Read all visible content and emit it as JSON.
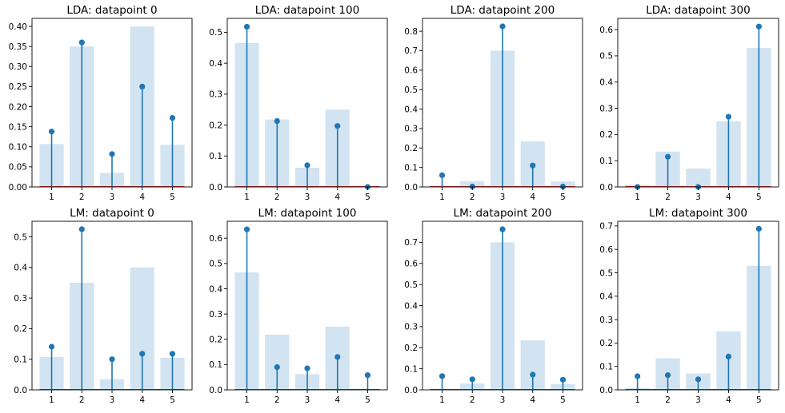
{
  "chart_data": [
    {
      "type": "bar+stem",
      "title": "LDA: datapoint 0",
      "categories": [
        "1",
        "2",
        "3",
        "4",
        "5"
      ],
      "bar_values": [
        0.107,
        0.35,
        0.035,
        0.4,
        0.105
      ],
      "stem_values": [
        0.138,
        0.36,
        0.082,
        0.25,
        0.172
      ],
      "ylim": [
        0,
        0.42
      ],
      "yticks": [
        0,
        0.05,
        0.1,
        0.15,
        0.2,
        0.25,
        0.3,
        0.35,
        0.4
      ],
      "ytick_labels": [
        "0.00",
        "0.05",
        "0.10",
        "0.15",
        "0.20",
        "0.25",
        "0.30",
        "0.35",
        "0.40"
      ]
    },
    {
      "type": "bar+stem",
      "title": "LDA: datapoint 100",
      "categories": [
        "1",
        "2",
        "3",
        "4",
        "5"
      ],
      "bar_values": [
        0.465,
        0.218,
        0.062,
        0.25,
        0.0
      ],
      "stem_values": [
        0.518,
        0.213,
        0.07,
        0.197,
        0.0
      ],
      "ylim": [
        0,
        0.545
      ],
      "yticks": [
        0,
        0.1,
        0.2,
        0.3,
        0.4,
        0.5
      ],
      "ytick_labels": [
        "0.0",
        "0.1",
        "0.2",
        "0.3",
        "0.4",
        "0.5"
      ]
    },
    {
      "type": "bar+stem",
      "title": "LDA: datapoint 200",
      "categories": [
        "1",
        "2",
        "3",
        "4",
        "5"
      ],
      "bar_values": [
        0.0,
        0.03,
        0.7,
        0.235,
        0.028
      ],
      "stem_values": [
        0.06,
        0.002,
        0.825,
        0.11,
        0.002
      ],
      "ylim": [
        0,
        0.866
      ],
      "yticks": [
        0,
        0.1,
        0.2,
        0.3,
        0.4,
        0.5,
        0.6,
        0.7,
        0.8
      ],
      "ytick_labels": [
        "0.0",
        "0.1",
        "0.2",
        "0.3",
        "0.4",
        "0.5",
        "0.6",
        "0.7",
        "0.8"
      ]
    },
    {
      "type": "bar+stem",
      "title": "LDA: datapoint 300",
      "categories": [
        "1",
        "2",
        "3",
        "4",
        "5"
      ],
      "bar_values": [
        0.008,
        0.135,
        0.07,
        0.25,
        0.53
      ],
      "stem_values": [
        0.0,
        0.115,
        0.0,
        0.268,
        0.612
      ],
      "ylim": [
        0,
        0.643
      ],
      "yticks": [
        0,
        0.1,
        0.2,
        0.3,
        0.4,
        0.5,
        0.6
      ],
      "ytick_labels": [
        "0.0",
        "0.1",
        "0.2",
        "0.3",
        "0.4",
        "0.5",
        "0.6"
      ]
    },
    {
      "type": "bar+stem",
      "title": "LM: datapoint 0",
      "categories": [
        "1",
        "2",
        "3",
        "4",
        "5"
      ],
      "bar_values": [
        0.107,
        0.35,
        0.035,
        0.4,
        0.105
      ],
      "stem_values": [
        0.141,
        0.525,
        0.1,
        0.118,
        0.118
      ],
      "ylim": [
        0,
        0.551
      ],
      "yticks": [
        0,
        0.1,
        0.2,
        0.3,
        0.4,
        0.5
      ],
      "ytick_labels": [
        "0.0",
        "0.1",
        "0.2",
        "0.3",
        "0.4",
        "0.5"
      ]
    },
    {
      "type": "bar+stem",
      "title": "LM: datapoint 100",
      "categories": [
        "1",
        "2",
        "3",
        "4",
        "5"
      ],
      "bar_values": [
        0.465,
        0.218,
        0.062,
        0.25,
        0.0
      ],
      "stem_values": [
        0.635,
        0.09,
        0.085,
        0.13,
        0.058
      ],
      "ylim": [
        0,
        0.667
      ],
      "yticks": [
        0,
        0.1,
        0.2,
        0.3,
        0.4,
        0.5,
        0.6
      ],
      "ytick_labels": [
        "0.0",
        "0.1",
        "0.2",
        "0.3",
        "0.4",
        "0.5",
        "0.6"
      ]
    },
    {
      "type": "bar+stem",
      "title": "LM: datapoint 200",
      "categories": [
        "1",
        "2",
        "3",
        "4",
        "5"
      ],
      "bar_values": [
        0.0,
        0.03,
        0.7,
        0.235,
        0.028
      ],
      "stem_values": [
        0.065,
        0.05,
        0.762,
        0.072,
        0.048
      ],
      "ylim": [
        0,
        0.8
      ],
      "yticks": [
        0,
        0.1,
        0.2,
        0.3,
        0.4,
        0.5,
        0.6,
        0.7
      ],
      "ytick_labels": [
        "0.0",
        "0.1",
        "0.2",
        "0.3",
        "0.4",
        "0.5",
        "0.6",
        "0.7"
      ]
    },
    {
      "type": "bar+stem",
      "title": "LM: datapoint 300",
      "categories": [
        "1",
        "2",
        "3",
        "4",
        "5"
      ],
      "bar_values": [
        0.008,
        0.135,
        0.07,
        0.25,
        0.53
      ],
      "stem_values": [
        0.058,
        0.063,
        0.045,
        0.142,
        0.688
      ],
      "ylim": [
        0,
        0.72
      ],
      "yticks": [
        0,
        0.1,
        0.2,
        0.3,
        0.4,
        0.5,
        0.6,
        0.7
      ],
      "ytick_labels": [
        "0.0",
        "0.1",
        "0.2",
        "0.3",
        "0.4",
        "0.5",
        "0.6",
        "0.7"
      ]
    }
  ],
  "colors": {
    "bar": "#d2e3f1",
    "stem": "#1f77b4",
    "baseline": "#d62728",
    "axis": "#000000"
  }
}
